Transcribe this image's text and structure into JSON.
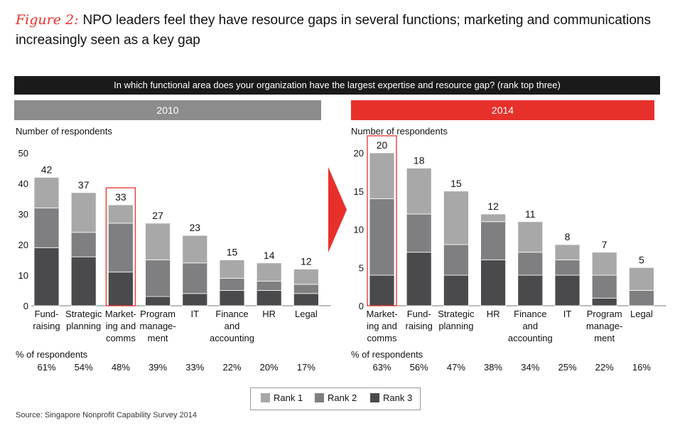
{
  "figure": {
    "label": "Figure 2:",
    "title": "NPO leaders feel they have resource gaps in several functions; marketing and communications increasingly seen as a key gap"
  },
  "question": "In which functional area does your organization have the largest expertise and resource gap? (rank top three)",
  "colors": {
    "rank1": "#a8a8a8",
    "rank2": "#7f7f82",
    "rank3": "#4a4a4c",
    "accent": "#e8302a",
    "header2010": "#8c8c8c"
  },
  "legend": [
    {
      "label": "Rank 1",
      "color": "#a8a8a8"
    },
    {
      "label": "Rank 2",
      "color": "#7f7f82"
    },
    {
      "label": "Rank 3",
      "color": "#4a4a4c"
    }
  ],
  "source": "Source: Singapore Nonprofit Capability Survey 2014",
  "chart_data": [
    {
      "type": "bar",
      "stacked": true,
      "year": "2010",
      "ylabel": "Number of respondents",
      "ylim": [
        0,
        50
      ],
      "yticks": [
        "0",
        "10",
        "20",
        "30",
        "40",
        "50"
      ],
      "pct_label": "% of respondents",
      "highlight_index": 2,
      "categories": [
        [
          "Fund-",
          "raising"
        ],
        [
          "Strategic",
          "planning"
        ],
        [
          "Market-",
          "ing and",
          "comms"
        ],
        [
          "Program",
          "manage-",
          "ment"
        ],
        [
          "IT"
        ],
        [
          "Finance",
          "and",
          "accounting"
        ],
        [
          "HR"
        ],
        [
          "Legal"
        ]
      ],
      "totals": [
        "42",
        "37",
        "33",
        "27",
        "23",
        "15",
        "14",
        "12"
      ],
      "percent": [
        "61%",
        "54%",
        "48%",
        "39%",
        "33%",
        "22%",
        "20%",
        "17%"
      ],
      "series": [
        {
          "name": "Rank 3",
          "values": [
            19,
            16,
            11,
            3,
            4,
            5,
            5,
            4
          ]
        },
        {
          "name": "Rank 2",
          "values": [
            13,
            8,
            16,
            12,
            10,
            4,
            3,
            3
          ]
        },
        {
          "name": "Rank 1",
          "values": [
            10,
            13,
            6,
            12,
            9,
            6,
            6,
            5
          ]
        }
      ]
    },
    {
      "type": "bar",
      "stacked": true,
      "year": "2014",
      "ylabel": "Number of respondents",
      "ylim": [
        0,
        20
      ],
      "yticks": [
        "0",
        "5",
        "10",
        "15",
        "20"
      ],
      "pct_label": "% of respondents",
      "highlight_index": 0,
      "categories": [
        [
          "Market-",
          "ing and",
          "comms"
        ],
        [
          "Fund-",
          "raising"
        ],
        [
          "Strategic",
          "planning"
        ],
        [
          "HR"
        ],
        [
          "Finance",
          "and",
          "accounting"
        ],
        [
          "IT"
        ],
        [
          "Program",
          "manage-",
          "ment"
        ],
        [
          "Legal"
        ]
      ],
      "totals": [
        "20",
        "18",
        "15",
        "12",
        "11",
        "8",
        "7",
        "5"
      ],
      "percent": [
        "63%",
        "56%",
        "47%",
        "38%",
        "34%",
        "25%",
        "22%",
        "16%"
      ],
      "series": [
        {
          "name": "Rank 3",
          "values": [
            4,
            7,
            4,
            6,
            4,
            4,
            1,
            0
          ]
        },
        {
          "name": "Rank 2",
          "values": [
            10,
            5,
            4,
            5,
            3,
            2,
            3,
            2
          ]
        },
        {
          "name": "Rank 1",
          "values": [
            6,
            6,
            7,
            1,
            4,
            2,
            3,
            3
          ]
        }
      ]
    }
  ]
}
